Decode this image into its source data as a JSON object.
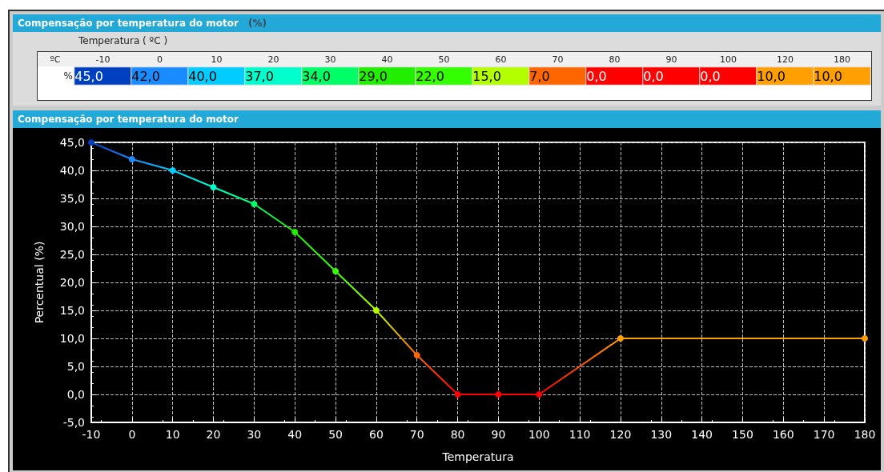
{
  "chart_data": [
    {
      "type": "heatmap",
      "title": "Compensação por temperatura do motor",
      "subtitle": "(%)",
      "xlabel": "Temperatura ( ºC )",
      "annotations": [
        "ºC"
      ],
      "categories": [
        "-10",
        "0",
        "10",
        "20",
        "30",
        "40",
        "50",
        "60",
        "70",
        "80",
        "90",
        "100",
        "120",
        "180"
      ],
      "y_categories": [
        "%"
      ],
      "cells": [
        [
          45,
          42,
          40,
          37,
          34,
          29,
          22,
          15,
          7,
          0,
          0,
          0,
          10,
          10
        ]
      ],
      "cell_labels": [
        [
          "45,0",
          "42,0",
          "40,0",
          "37,0",
          "34,0",
          "29,0",
          "22,0",
          "15,0",
          "7,0",
          "0,0",
          "0,0",
          "0,0",
          "10,0",
          "10,0"
        ]
      ],
      "colors": [
        "#0040c0",
        "#1a8cff",
        "#00ccff",
        "#00ffcc",
        "#00ff66",
        "#22ee00",
        "#33ff00",
        "#b3ff00",
        "#ff6600",
        "#ff0000",
        "#ff0000",
        "#ff0000",
        "#ffa000",
        "#ffa000"
      ]
    },
    {
      "type": "line",
      "title": "Compensação por temperatura do motor",
      "xlabel": "Temperatura",
      "ylabel": "Percentual (%)",
      "x": [
        -10,
        0,
        10,
        20,
        30,
        40,
        50,
        60,
        70,
        80,
        90,
        100,
        120,
        180
      ],
      "values": [
        45,
        42,
        40,
        37,
        34,
        29,
        22,
        15,
        7,
        0,
        0,
        0,
        10,
        10
      ],
      "colors": [
        "#0040c0",
        "#1a8cff",
        "#00ccff",
        "#00ffcc",
        "#00ff66",
        "#22ee00",
        "#33ff00",
        "#b3ff00",
        "#ff6600",
        "#ff0000",
        "#ff0000",
        "#ff0000",
        "#ffa000",
        "#ffa000"
      ],
      "xlim": [
        -10,
        180
      ],
      "xticks": [
        -10,
        0,
        10,
        20,
        30,
        40,
        50,
        60,
        70,
        80,
        90,
        100,
        110,
        120,
        130,
        140,
        150,
        160,
        170,
        180
      ],
      "ylim": [
        -5,
        45
      ],
      "yticks": [
        {
          "value": -5,
          "label": "-5,0"
        },
        {
          "value": 0,
          "label": "0,0"
        },
        {
          "value": 5,
          "label": "5,0"
        },
        {
          "value": 10,
          "label": "10,0"
        },
        {
          "value": 15,
          "label": "15,0"
        },
        {
          "value": 20,
          "label": "20,0"
        },
        {
          "value": 25,
          "label": "25,0"
        },
        {
          "value": 30,
          "label": "30,0"
        },
        {
          "value": 35,
          "label": "35,0"
        },
        {
          "value": 40,
          "label": "40,0"
        },
        {
          "value": 45,
          "label": "45,0"
        }
      ],
      "grid": true,
      "marker": "circle",
      "line_style": "solid"
    }
  ]
}
